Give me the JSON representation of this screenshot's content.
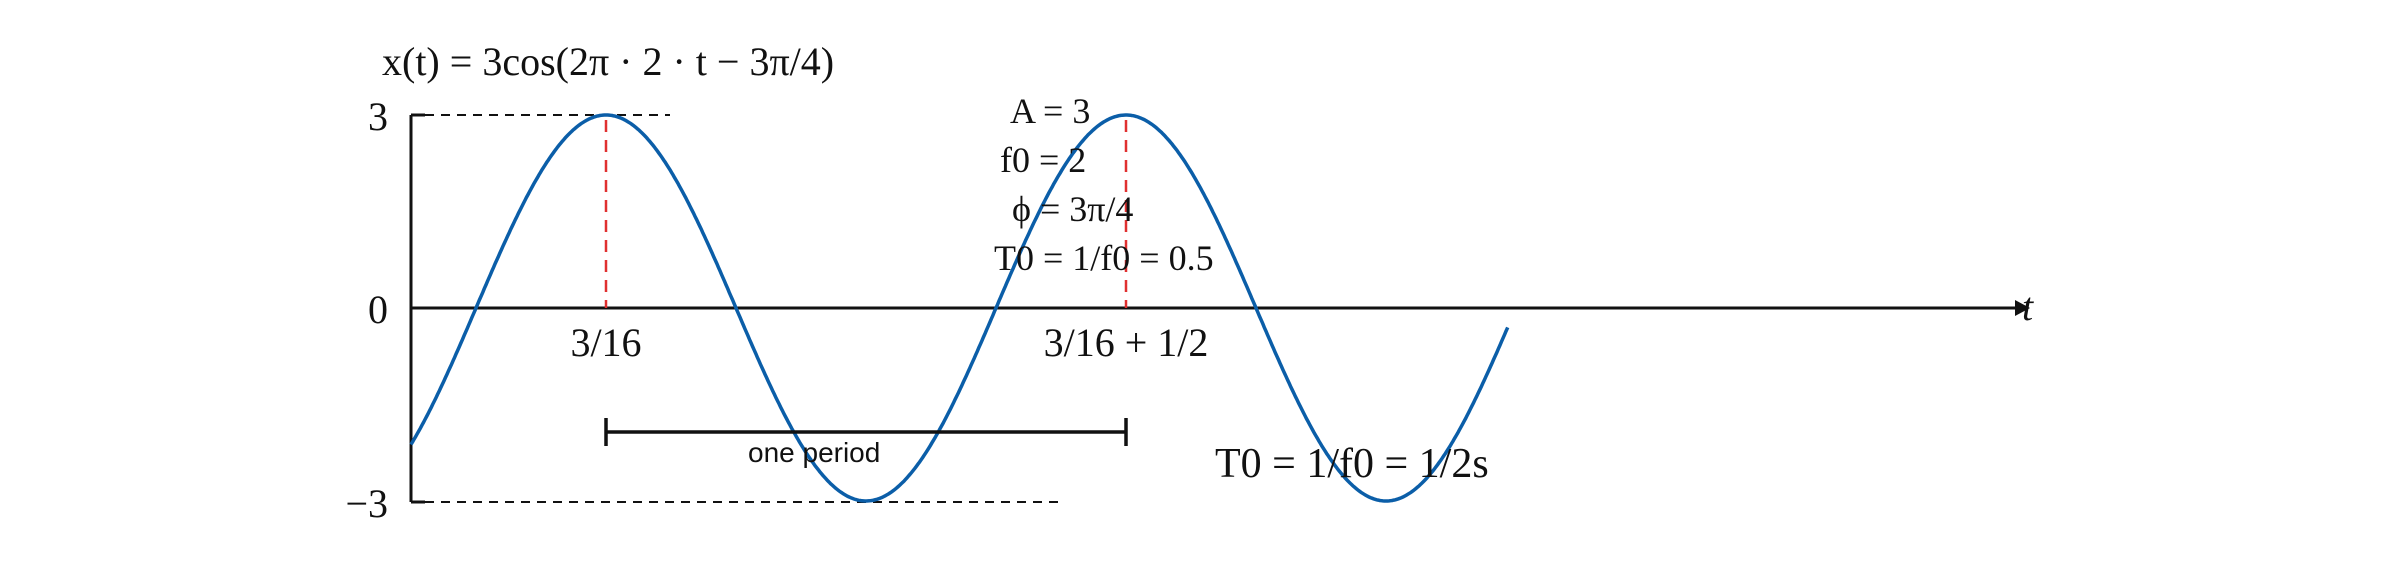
{
  "chart_data": {
    "type": "line",
    "title": "x(t) = 3cos(2π · 2 · t − 3π/4)",
    "xlabel": "t",
    "ylabel": "",
    "function": {
      "amplitude": 3,
      "frequency": 2,
      "phase": -2.35619449
    },
    "xlim": [
      0,
      1.05
    ],
    "ylim": [
      -3,
      3
    ],
    "yticks": [
      {
        "value": 3,
        "label": "3"
      },
      {
        "value": 0,
        "label": "0"
      },
      {
        "value": -3,
        "label": "−3"
      }
    ],
    "peaks": [
      {
        "t": 0.1875,
        "label": "3/16"
      },
      {
        "t": 0.6875,
        "label": "3/16 + 1/2"
      }
    ],
    "parameters": [
      "A = 3",
      "f0 = 2",
      "ϕ = 3π/4",
      "T0 = 1/f0 = 0.5"
    ],
    "period_annotation": {
      "start": 0.1875,
      "end": 0.6875,
      "label": "one period",
      "formula": "T0 = 1/f0 = 1/2s"
    },
    "colors": {
      "curve": "#0b5ea8",
      "peak_markers": "#e03030",
      "axes": "#111111"
    }
  }
}
